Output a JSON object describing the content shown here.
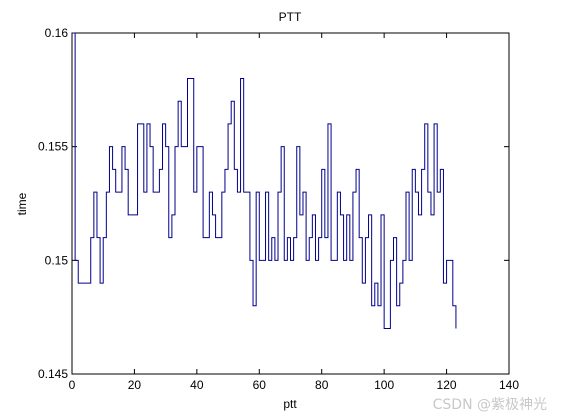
{
  "chart_data": {
    "type": "line",
    "step": true,
    "title": "PTT",
    "xlabel": "ptt",
    "ylabel": "time",
    "xlim": [
      0,
      140
    ],
    "ylim": [
      0.145,
      0.16
    ],
    "x_ticks": [
      "0",
      "20",
      "40",
      "60",
      "80",
      "100",
      "120",
      "140"
    ],
    "y_ticks": [
      "0.145",
      "0.15",
      "0.155",
      "0.16"
    ],
    "grid": false,
    "line_color": "#00008b",
    "series": [
      {
        "values": [
          0.16,
          0.15,
          0.149,
          0.149,
          0.149,
          0.149,
          0.151,
          0.153,
          0.151,
          0.149,
          0.151,
          0.153,
          0.155,
          0.154,
          0.153,
          0.153,
          0.155,
          0.154,
          0.152,
          0.152,
          0.152,
          0.156,
          0.156,
          0.153,
          0.156,
          0.155,
          0.153,
          0.153,
          0.154,
          0.156,
          0.155,
          0.151,
          0.152,
          0.155,
          0.157,
          0.155,
          0.155,
          0.158,
          0.158,
          0.153,
          0.155,
          0.155,
          0.151,
          0.151,
          0.153,
          0.152,
          0.151,
          0.151,
          0.153,
          0.154,
          0.156,
          0.157,
          0.154,
          0.153,
          0.158,
          0.153,
          0.153,
          0.15,
          0.148,
          0.153,
          0.15,
          0.15,
          0.153,
          0.15,
          0.151,
          0.15,
          0.153,
          0.155,
          0.15,
          0.151,
          0.15,
          0.151,
          0.155,
          0.152,
          0.153,
          0.15,
          0.151,
          0.152,
          0.15,
          0.151,
          0.154,
          0.151,
          0.156,
          0.15,
          0.15,
          0.153,
          0.152,
          0.15,
          0.152,
          0.15,
          0.153,
          0.154,
          0.151,
          0.149,
          0.151,
          0.152,
          0.148,
          0.149,
          0.148,
          0.152,
          0.147,
          0.147,
          0.15,
          0.151,
          0.148,
          0.149,
          0.15,
          0.153,
          0.15,
          0.154,
          0.153,
          0.152,
          0.154,
          0.156,
          0.153,
          0.152,
          0.156,
          0.153,
          0.154,
          0.149,
          0.15,
          0.15,
          0.148,
          0.147
        ]
      }
    ]
  },
  "watermark": "CSDN @紫极神光"
}
